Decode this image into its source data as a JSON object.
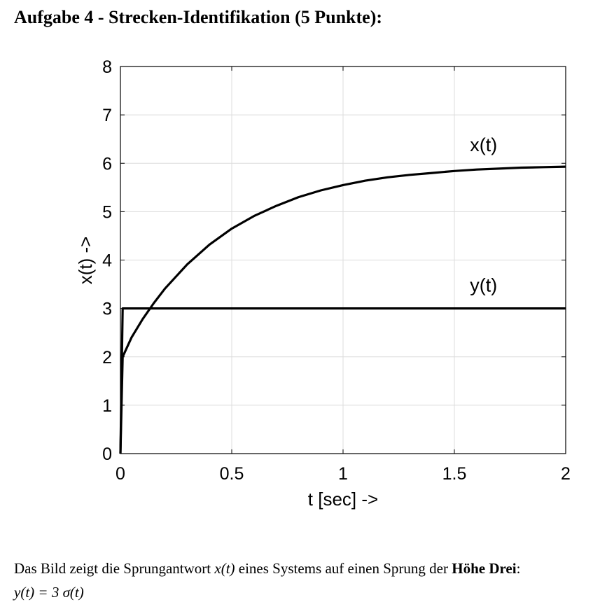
{
  "title": "Aufgabe 4 - Strecken-Identifikation (5 Punkte):",
  "caption": {
    "part1": "Das Bild zeigt die Sprungantwort ",
    "xt": "x(t)",
    "part2": " eines Systems auf einen Sprung der ",
    "bold": "Höhe Drei",
    "part3": ":",
    "line2": "y(t) = 3 σ(t)"
  },
  "chart_data": {
    "type": "line",
    "xlabel": "t [sec] ->",
    "ylabel": "x(t) ->",
    "xlim": [
      0,
      2
    ],
    "ylim": [
      0,
      8
    ],
    "xticks": [
      0,
      0.5,
      1,
      1.5,
      2
    ],
    "xtick_labels": [
      "0",
      "0.5",
      "1",
      "1.5",
      "2"
    ],
    "yticks": [
      0,
      1,
      2,
      3,
      4,
      5,
      6,
      7,
      8
    ],
    "ytick_labels": [
      "0",
      "1",
      "2",
      "3",
      "4",
      "5",
      "6",
      "7",
      "8"
    ],
    "grid": true,
    "series": [
      {
        "name": "x(t)",
        "x": [
          0,
          0.01,
          0.05,
          0.1,
          0.15,
          0.2,
          0.3,
          0.4,
          0.5,
          0.6,
          0.7,
          0.8,
          0.9,
          1.0,
          1.1,
          1.2,
          1.3,
          1.4,
          1.5,
          1.6,
          1.7,
          1.8,
          1.9,
          2.0
        ],
        "values": [
          0,
          2.0,
          2.4,
          2.78,
          3.11,
          3.41,
          3.91,
          4.32,
          4.65,
          4.91,
          5.12,
          5.3,
          5.44,
          5.55,
          5.64,
          5.71,
          5.76,
          5.8,
          5.84,
          5.87,
          5.89,
          5.91,
          5.92,
          5.93
        ]
      },
      {
        "name": "y(t)",
        "x": [
          0,
          0.01,
          2.0
        ],
        "values": [
          0,
          3,
          3
        ]
      }
    ],
    "annotations": [
      {
        "text": "x(t)",
        "x": 1.57,
        "y": 6.25
      },
      {
        "text": "y(t)",
        "x": 1.57,
        "y": 3.35
      }
    ]
  }
}
